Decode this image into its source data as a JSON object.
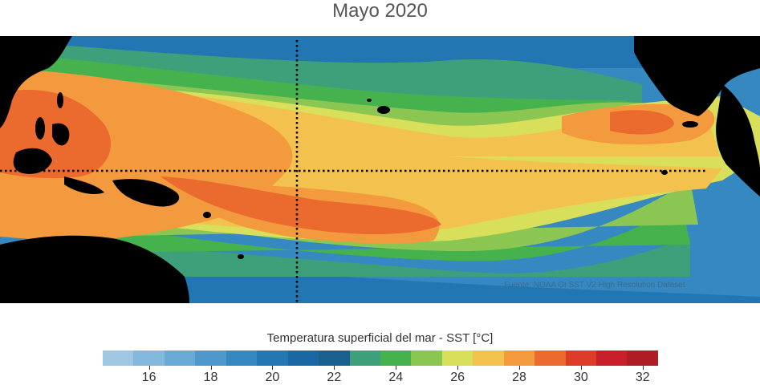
{
  "title": "Mayo 2020",
  "credit": "Fuente: NOAA OI SST V2 High Resolution Dataset",
  "colorbar": {
    "label": "Temperatura superficial del mar - SST  [°C]",
    "min": 15,
    "max": 33,
    "step": 1,
    "tick_values": [
      16,
      18,
      20,
      22,
      24,
      26,
      28,
      30,
      32
    ],
    "tick_labels": [
      "16",
      "18",
      "20",
      "22",
      "24",
      "26",
      "28",
      "30",
      "32"
    ],
    "colors": [
      "#9fc7e3",
      "#84b9de",
      "#6aa9d6",
      "#4f98cc",
      "#3588c0",
      "#2277b2",
      "#1a68a3",
      "#19608f",
      "#3ea07a",
      "#45b24e",
      "#8cc652",
      "#d8df5a",
      "#f3c24e",
      "#f29a3d",
      "#eb6a2d",
      "#dc3b27",
      "#c91f2a",
      "#b01c24"
    ]
  },
  "map_colors": {
    "land": "#000000",
    "reference_lines": "#000000"
  }
}
